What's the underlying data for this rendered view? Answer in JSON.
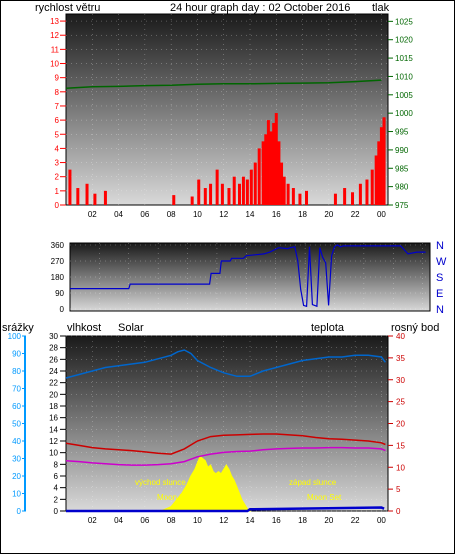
{
  "colors": {
    "wind": "#ff0000",
    "pressure": "#006600",
    "title": "#000080",
    "direction": "#0000cc",
    "humidity": "#0066cc",
    "solar": "#ffff00",
    "solar_label": "#cc6600",
    "temperature": "#cc0000",
    "dewpoint": "#cc00cc",
    "rain": "#0000cc",
    "rain_axis": "#0099ff"
  },
  "header": {
    "wind_label": "rychlost větru",
    "title": "24 hour graph day : 02 October 2016",
    "pressure_label": "tlak"
  },
  "legend3": {
    "rain": "srážky",
    "humidity": "vlhkost",
    "solar": "Solar",
    "temperature": "teplota",
    "dewpoint": "rosný bod"
  },
  "annotations": {
    "sunrise": "východ slunce",
    "sunset": "západ slunce",
    "moonrise": "Moon Rise",
    "moonset": "Moon Set"
  },
  "compass": [
    "N",
    "W",
    "S",
    "E",
    "N"
  ],
  "chart_data": [
    {
      "type": "bar",
      "x_ticks": [
        "02",
        "04",
        "06",
        "08",
        "10",
        "12",
        "14",
        "16",
        "18",
        "20",
        "22",
        "00"
      ],
      "y_left_ticks": [
        "0",
        "1",
        "2",
        "3",
        "4",
        "5",
        "6",
        "7",
        "8",
        "9",
        "10",
        "11",
        "12",
        "13"
      ],
      "y_right_ticks": [
        "975",
        "980",
        "985",
        "990",
        "995",
        "1000",
        "1005",
        "1010",
        "1015",
        "1020",
        "1025"
      ],
      "ylim_left": [
        0,
        13.5
      ],
      "ylim_right": [
        975,
        1027
      ],
      "series": [
        {
          "name": "rychlost větru",
          "axis": "left",
          "type": "bar",
          "x": [
            0.3,
            0.9,
            1.6,
            2.2,
            3.0,
            8.2,
            9.6,
            10.1,
            10.6,
            11.0,
            11.5,
            11.9,
            12.4,
            12.8,
            13.2,
            13.5,
            13.8,
            14.1,
            14.4,
            14.7,
            15.0,
            15.2,
            15.4,
            15.6,
            15.8,
            16.0,
            16.2,
            16.4,
            16.6,
            16.9,
            17.3,
            17.8,
            18.3,
            20.5,
            21.2,
            21.8,
            22.4,
            22.9,
            23.3,
            23.6,
            23.8,
            24.0,
            24.2
          ],
          "values": [
            2.5,
            1.2,
            1.5,
            0.8,
            1.0,
            0.7,
            0.6,
            1.8,
            1.2,
            1.5,
            2.5,
            1.5,
            1.2,
            2.0,
            1.5,
            2.0,
            1.8,
            2.5,
            3.0,
            4.0,
            4.5,
            5.0,
            6.0,
            5.2,
            5.8,
            6.5,
            4.5,
            3.0,
            2.0,
            1.5,
            1.2,
            0.8,
            1.0,
            0.8,
            1.2,
            0.9,
            1.5,
            1.8,
            2.5,
            3.5,
            4.5,
            5.5,
            6.2
          ]
        },
        {
          "name": "tlak",
          "axis": "right",
          "type": "line",
          "x": [
            0,
            2,
            4,
            6,
            8,
            10,
            12,
            14,
            16,
            18,
            20,
            22,
            24
          ],
          "values": [
            1006.8,
            1007.2,
            1007.3,
            1007.5,
            1007.6,
            1007.9,
            1008.0,
            1008.0,
            1008.1,
            1008.2,
            1008.3,
            1008.6,
            1009.0
          ]
        }
      ]
    },
    {
      "type": "line",
      "x_ticks": [
        "02",
        "04",
        "06",
        "08",
        "10",
        "12",
        "14",
        "16",
        "18",
        "20",
        "22",
        "00"
      ],
      "y_ticks": [
        "0",
        "90",
        "180",
        "270",
        "360"
      ],
      "ylim": [
        0,
        360
      ],
      "series": [
        {
          "name": "direction",
          "x": [
            0,
            4,
            4.1,
            9.5,
            9.6,
            10.2,
            10.3,
            10.9,
            11.0,
            11.8,
            12.0,
            13.2,
            13.6,
            14.2,
            14.8,
            15.0,
            15.3,
            15.5,
            15.7,
            15.9,
            16.1,
            16.3,
            16.5,
            16.8,
            17.0,
            17.2,
            17.4,
            17.6,
            17.8,
            18.0,
            18.2,
            18.4,
            18.6,
            22.5,
            23.0,
            23.6,
            24.2
          ],
          "values": [
            115,
            115,
            140,
            140,
            200,
            200,
            270,
            270,
            285,
            285,
            300,
            310,
            320,
            345,
            340,
            345,
            350,
            270,
            110,
            20,
            15,
            350,
            25,
            15,
            345,
            290,
            260,
            20,
            300,
            350,
            360,
            350,
            355,
            355,
            310,
            320,
            320
          ]
        }
      ]
    },
    {
      "type": "line",
      "x_ticks": [
        "02",
        "04",
        "06",
        "08",
        "10",
        "12",
        "14",
        "16",
        "18",
        "20",
        "22",
        "00"
      ],
      "y_left_ticks": [
        "0",
        "10",
        "20",
        "30",
        "40",
        "50",
        "60",
        "70",
        "80",
        "90",
        "100"
      ],
      "y_left2_ticks": [
        "0",
        "2",
        "4",
        "6",
        "8",
        "10",
        "12",
        "14",
        "16",
        "18",
        "20",
        "22",
        "24",
        "26",
        "28",
        "30"
      ],
      "y_right_ticks": [
        "0",
        "5",
        "10",
        "15",
        "20",
        "25",
        "30",
        "35",
        "40"
      ],
      "ylim_humidity": [
        0,
        100
      ],
      "ylim_rain": [
        0,
        30
      ],
      "ylim_temp": [
        0,
        40
      ],
      "series": [
        {
          "name": "vlhkost",
          "axis": "humidity",
          "x": [
            0,
            1,
            2,
            3,
            4,
            5,
            6,
            7,
            8,
            8.5,
            9,
            9.5,
            10,
            11,
            12,
            13,
            14,
            15,
            16,
            17,
            18,
            19,
            20,
            21,
            22,
            23,
            24,
            24.3
          ],
          "values": [
            76,
            78,
            80,
            82,
            83,
            84,
            85,
            87,
            89,
            91,
            92,
            90,
            86,
            82,
            79,
            77,
            77,
            80,
            82,
            84,
            86,
            87,
            88,
            88,
            89,
            89,
            88,
            85
          ]
        },
        {
          "name": "teplota",
          "axis": "temp",
          "x": [
            0,
            1,
            2,
            3,
            4,
            5,
            6,
            7,
            8,
            9,
            10,
            11,
            12,
            13,
            14,
            15,
            16,
            17,
            18,
            19,
            20,
            21,
            22,
            23,
            24,
            24.3
          ],
          "values": [
            15.5,
            15,
            14.5,
            14.2,
            14,
            13.8,
            13.5,
            13.2,
            13,
            14.2,
            16,
            17,
            17.3,
            17.4,
            17.5,
            17.6,
            17.6,
            17.4,
            17.2,
            16.8,
            16.5,
            16.4,
            16.2,
            16,
            15.6,
            15.2
          ]
        },
        {
          "name": "rosný bod",
          "axis": "temp",
          "x": [
            0,
            1,
            2,
            3,
            4,
            5,
            6,
            7,
            8,
            9,
            10,
            11,
            12,
            13,
            14,
            15,
            16,
            17,
            18,
            19,
            20,
            21,
            22,
            23,
            24,
            24.3
          ],
          "values": [
            11.5,
            11.3,
            11,
            10.8,
            10.6,
            10.5,
            10.5,
            10.6,
            10.8,
            11.3,
            12.4,
            13,
            13.4,
            13.6,
            13.7,
            14,
            14.2,
            14.3,
            14.4,
            14.4,
            14.5,
            14.5,
            14.4,
            14.4,
            14.2,
            13.8
          ]
        },
        {
          "name": "Solar",
          "axis": "temp",
          "type": "area",
          "x": [
            7.2,
            7.6,
            8.0,
            8.4,
            8.8,
            9.2,
            9.5,
            9.8,
            10.0,
            10.2,
            10.4,
            10.6,
            10.8,
            11.0,
            11.2,
            11.4,
            11.6,
            11.8,
            12.0,
            12.2,
            12.4,
            12.6,
            12.8,
            13.0,
            13.2,
            13.4,
            13.6,
            13.8,
            14.0
          ],
          "values": [
            0,
            0.5,
            1,
            2.5,
            4,
            6,
            8,
            9.5,
            11,
            12.5,
            12,
            11.5,
            10,
            10.5,
            9,
            8.5,
            9,
            8.5,
            9.5,
            10.5,
            9.5,
            8,
            7,
            5.5,
            4,
            2.5,
            1.5,
            0.5,
            0
          ]
        },
        {
          "name": "srážky",
          "axis": "rain",
          "x": [
            0,
            13.8,
            14.0,
            24.0,
            24.2
          ],
          "values": [
            0,
            0,
            0.3,
            0.6,
            0.4
          ]
        }
      ]
    }
  ]
}
